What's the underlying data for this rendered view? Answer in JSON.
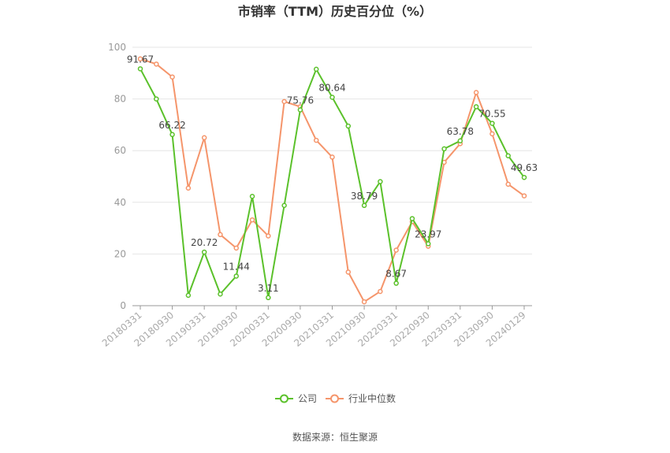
{
  "chart_data": {
    "type": "line",
    "title": "市销率（TTM）历史百分位（%）",
    "ylim": [
      0,
      100
    ],
    "yticks": [
      0,
      20,
      40,
      60,
      80,
      100
    ],
    "x_tick_labels": [
      "20180331",
      "20180930",
      "20190331",
      "20190930",
      "20200331",
      "20200930",
      "20210331",
      "20210930",
      "20220331",
      "20220930",
      "20230331",
      "20230930",
      "20240129"
    ],
    "x_tick_indices": [
      0,
      2,
      4,
      6,
      8,
      10,
      12,
      14,
      16,
      18,
      20,
      22,
      24
    ],
    "grid": true,
    "legend_position": "bottom",
    "series": [
      {
        "name": "公司",
        "color": "#5bc12b",
        "values": [
          91.67,
          80,
          66.22,
          4,
          20.72,
          4.5,
          11.44,
          42.3,
          3.11,
          38.8,
          75.76,
          91.5,
          80.64,
          69.5,
          38.79,
          48,
          8.67,
          33.7,
          23.97,
          60.7,
          63.78,
          77,
          70.55,
          58,
          49.63
        ],
        "data_labels": [
          {
            "index": 0,
            "text": "91.67"
          },
          {
            "index": 2,
            "text": "66.22"
          },
          {
            "index": 4,
            "text": "20.72"
          },
          {
            "index": 6,
            "text": "11.44"
          },
          {
            "index": 8,
            "text": "3.11"
          },
          {
            "index": 10,
            "text": "75.76"
          },
          {
            "index": 12,
            "text": "80.64"
          },
          {
            "index": 14,
            "text": "38.79"
          },
          {
            "index": 16,
            "text": "8.67"
          },
          {
            "index": 18,
            "text": "23.97"
          },
          {
            "index": 20,
            "text": "63.78"
          },
          {
            "index": 22,
            "text": "70.55"
          },
          {
            "index": 24,
            "text": "49.63"
          }
        ]
      },
      {
        "name": "行业中位数",
        "color": "#f5956b",
        "values": [
          95.5,
          93.5,
          88.5,
          45.5,
          65,
          27.5,
          22.3,
          33.2,
          27,
          79,
          77,
          64,
          57.5,
          13,
          1.5,
          5.5,
          21.5,
          32.5,
          23,
          55.5,
          62.7,
          82.5,
          66.5,
          47,
          42.5
        ],
        "data_labels": []
      }
    ]
  },
  "legend": {
    "company": "公司",
    "industry_median": "行业中位数"
  },
  "source": "数据来源：恒生聚源"
}
